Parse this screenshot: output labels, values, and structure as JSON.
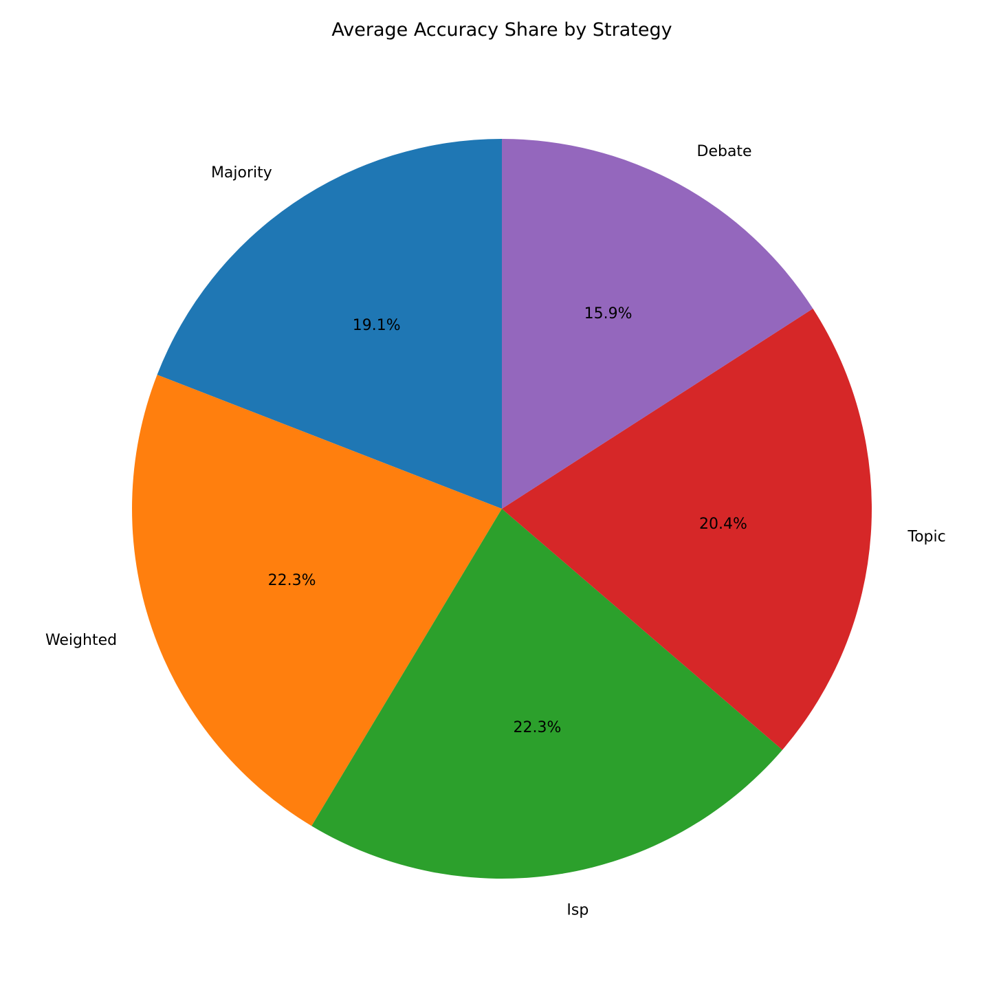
{
  "chart_data": {
    "type": "pie",
    "title": "Average Accuracy Share by Strategy",
    "start_angle_deg": 90,
    "direction": "counterclockwise",
    "slices": [
      {
        "label": "Majority",
        "value": 19.1,
        "pct_label": "19.1%",
        "color": "#1f77b4"
      },
      {
        "label": "Weighted",
        "value": 22.3,
        "pct_label": "22.3%",
        "color": "#ff7f0e"
      },
      {
        "label": "Isp",
        "value": 22.3,
        "pct_label": "22.3%",
        "color": "#2ca02c"
      },
      {
        "label": "Topic",
        "value": 20.4,
        "pct_label": "20.4%",
        "color": "#d62728"
      },
      {
        "label": "Debate",
        "value": 15.9,
        "pct_label": "15.9%",
        "color": "#9467bd"
      }
    ]
  }
}
